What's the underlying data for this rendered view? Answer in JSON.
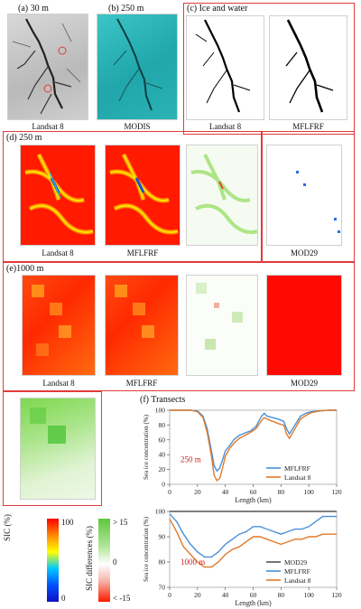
{
  "panels": {
    "a": {
      "label": "(a) 30 m",
      "caption": "Landsat 8"
    },
    "b": {
      "label": "(b) 250 m",
      "caption": "MODIS"
    },
    "c": {
      "label": "(c) Ice and water",
      "captions": [
        "Landsat 8",
        "MFLFRF"
      ]
    },
    "d": {
      "label": "(d) 250 m",
      "captions": [
        "Landsat 8",
        "MFLFRF",
        "",
        "MOD29"
      ]
    },
    "e": {
      "label": "(e)1000 m",
      "captions": [
        "Landsat 8",
        "MFLFRF",
        "",
        "MOD29"
      ]
    },
    "f": {
      "label": "(f) Transects"
    }
  },
  "colorbars": {
    "sic": {
      "label": "SIC (%)",
      "top": "100",
      "bottom": "0"
    },
    "diff": {
      "label": "SIC differences (%)",
      "top": "> 15",
      "mid": "0",
      "bottom": "< -15"
    }
  },
  "colors": {
    "frame": "#e23b3b",
    "mflfrf_line": "#4a90d9",
    "landsat_line": "#e07a2a",
    "mod29_line": "#555555",
    "modis_teal": "#2ab3b7"
  },
  "chart_data": [
    {
      "type": "line",
      "annotation": "250 m",
      "xlabel": "Length (km)",
      "ylabel": "Sea ice concentration (%)",
      "xlim": [
        0,
        120
      ],
      "ylim": [
        0,
        100
      ],
      "xticks": [
        "0",
        "20",
        "40",
        "60",
        "80",
        "100",
        "120"
      ],
      "yticks": [
        "0",
        "20",
        "40",
        "60",
        "80",
        "100"
      ],
      "legend_position": "bottom-right",
      "x": [
        0,
        5,
        10,
        15,
        20,
        24,
        27,
        30,
        32,
        34,
        36,
        38,
        40,
        43,
        46,
        50,
        55,
        58,
        62,
        66,
        68,
        70,
        74,
        78,
        82,
        84,
        86,
        90,
        94,
        98,
        102,
        108,
        114,
        120
      ],
      "series": [
        {
          "name": "MFLFRF",
          "values": [
            100,
            100,
            100,
            100,
            99,
            92,
            75,
            45,
            25,
            18,
            22,
            33,
            45,
            52,
            60,
            66,
            70,
            72,
            78,
            92,
            96,
            92,
            90,
            88,
            85,
            75,
            68,
            80,
            92,
            96,
            98,
            99,
            100,
            100
          ]
        },
        {
          "name": "Landsat 8",
          "values": [
            100,
            100,
            100,
            100,
            98,
            90,
            70,
            38,
            12,
            5,
            8,
            22,
            38,
            48,
            55,
            62,
            67,
            70,
            75,
            86,
            90,
            88,
            85,
            82,
            80,
            68,
            62,
            75,
            88,
            93,
            97,
            99,
            100,
            100
          ]
        }
      ]
    },
    {
      "type": "line",
      "annotation": "1000 m",
      "xlabel": "Length (km)",
      "ylabel": "Sea ice concentration (%)",
      "xlim": [
        0,
        120
      ],
      "ylim": [
        70,
        100
      ],
      "xticks": [
        "0",
        "20",
        "40",
        "60",
        "80",
        "100",
        "120"
      ],
      "yticks": [
        "70",
        "80",
        "90",
        "100"
      ],
      "legend_position": "bottom-right",
      "x": [
        0,
        5,
        10,
        15,
        20,
        25,
        30,
        35,
        40,
        45,
        50,
        55,
        60,
        65,
        70,
        75,
        80,
        85,
        90,
        95,
        100,
        105,
        110,
        115,
        120
      ],
      "series": [
        {
          "name": "MOD29",
          "values": [
            100,
            100,
            100,
            100,
            100,
            100,
            100,
            100,
            100,
            100,
            100,
            100,
            100,
            100,
            100,
            100,
            100,
            100,
            100,
            100,
            100,
            100,
            100,
            100,
            100
          ]
        },
        {
          "name": "MFLFRF",
          "values": [
            99,
            96,
            91,
            87,
            84,
            82,
            82,
            84,
            87,
            89,
            91,
            92,
            94,
            94,
            93,
            92,
            91,
            92,
            93,
            93,
            94,
            96,
            98,
            98,
            98
          ]
        },
        {
          "name": "Landsat 8",
          "values": [
            97,
            92,
            86,
            83,
            80,
            78,
            78,
            80,
            83,
            85,
            86,
            88,
            90,
            90,
            89,
            88,
            87,
            88,
            89,
            89,
            90,
            90,
            91,
            91,
            91
          ]
        }
      ]
    }
  ]
}
